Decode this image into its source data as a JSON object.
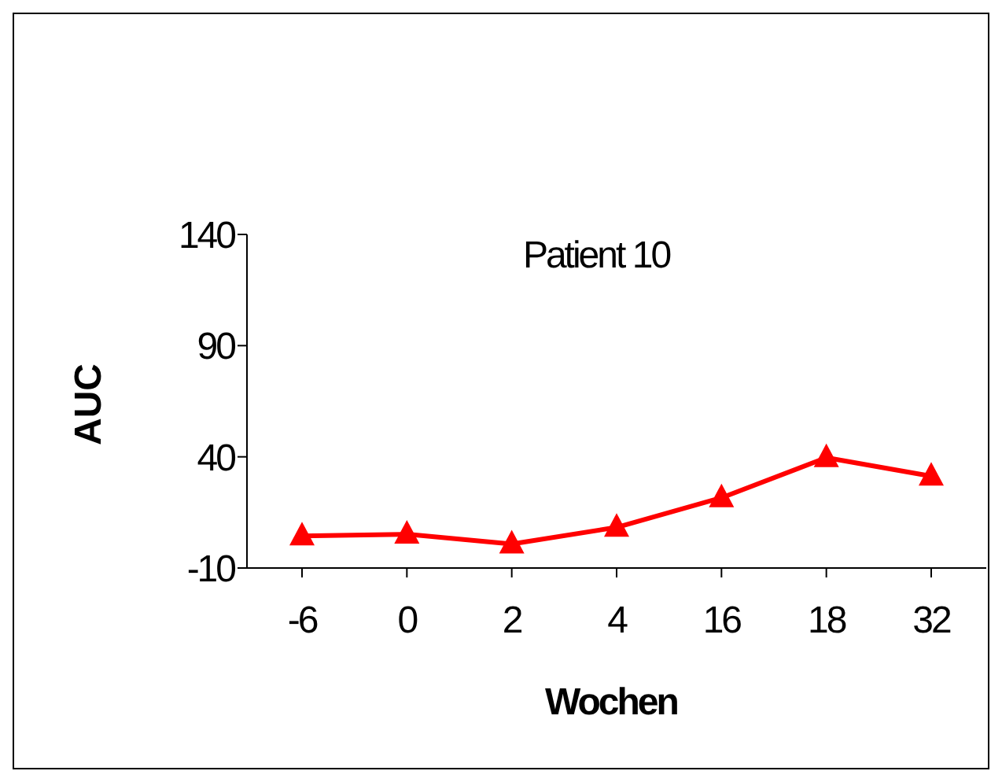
{
  "chart_data": {
    "type": "line",
    "title": "Patient 10",
    "xlabel": "Wochen",
    "ylabel": "AUC",
    "categories": [
      "-6",
      "0",
      "2",
      "4",
      "16",
      "18",
      "32"
    ],
    "series": [
      {
        "color": "#ff0000",
        "values": [
          4.4,
          5.2,
          0.8,
          8.3,
          21.6,
          39.6,
          31.3
        ]
      }
    ],
    "ylim": [
      -10,
      140
    ],
    "yticks": [
      -10,
      40,
      90,
      140
    ],
    "marker": "triangle",
    "line_style": "solid",
    "grid": false,
    "legend": false
  }
}
